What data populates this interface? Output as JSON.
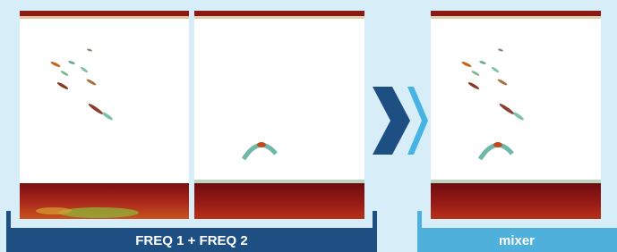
{
  "labels": {
    "left": "FREQ 1 + FREQ 2",
    "right": "mixer"
  }
}
